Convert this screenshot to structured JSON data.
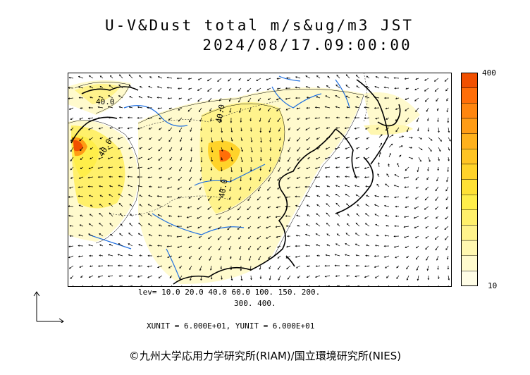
{
  "title": {
    "line1": "U-V&Dust total m/s&ug/m3 JST",
    "line2": "2024/08/17.09:00:00"
  },
  "colorbar": {
    "max_label": "400",
    "min_label": "10",
    "colors": [
      "#fffde6",
      "#fffacd",
      "#fff7b0",
      "#fff38c",
      "#fff06b",
      "#ffee4a",
      "#ffe135",
      "#ffd32a",
      "#ffc423",
      "#ffb11c",
      "#ff9c15",
      "#ff860f",
      "#ff6e08",
      "#f15000"
    ]
  },
  "levels": {
    "line1": "lev= 10.0 20.0 40.0 60.0 100. 150. 200.",
    "line2": "300. 400."
  },
  "units": {
    "line": "XUNIT = 6.000E+01, YUNIT = 6.000E+01"
  },
  "contour_labels": [
    "40.0",
    "40.0",
    "40.0",
    "40.0"
  ],
  "credit": "©九州大学応用力学研究所(RIAM)/国立環境研究所(NIES)",
  "colors": {
    "coast": "#000000",
    "river": "#1f6fe0",
    "dust_low": "#fffacd",
    "dust_mid": "#fff06b",
    "dust_high": "#f15000"
  }
}
